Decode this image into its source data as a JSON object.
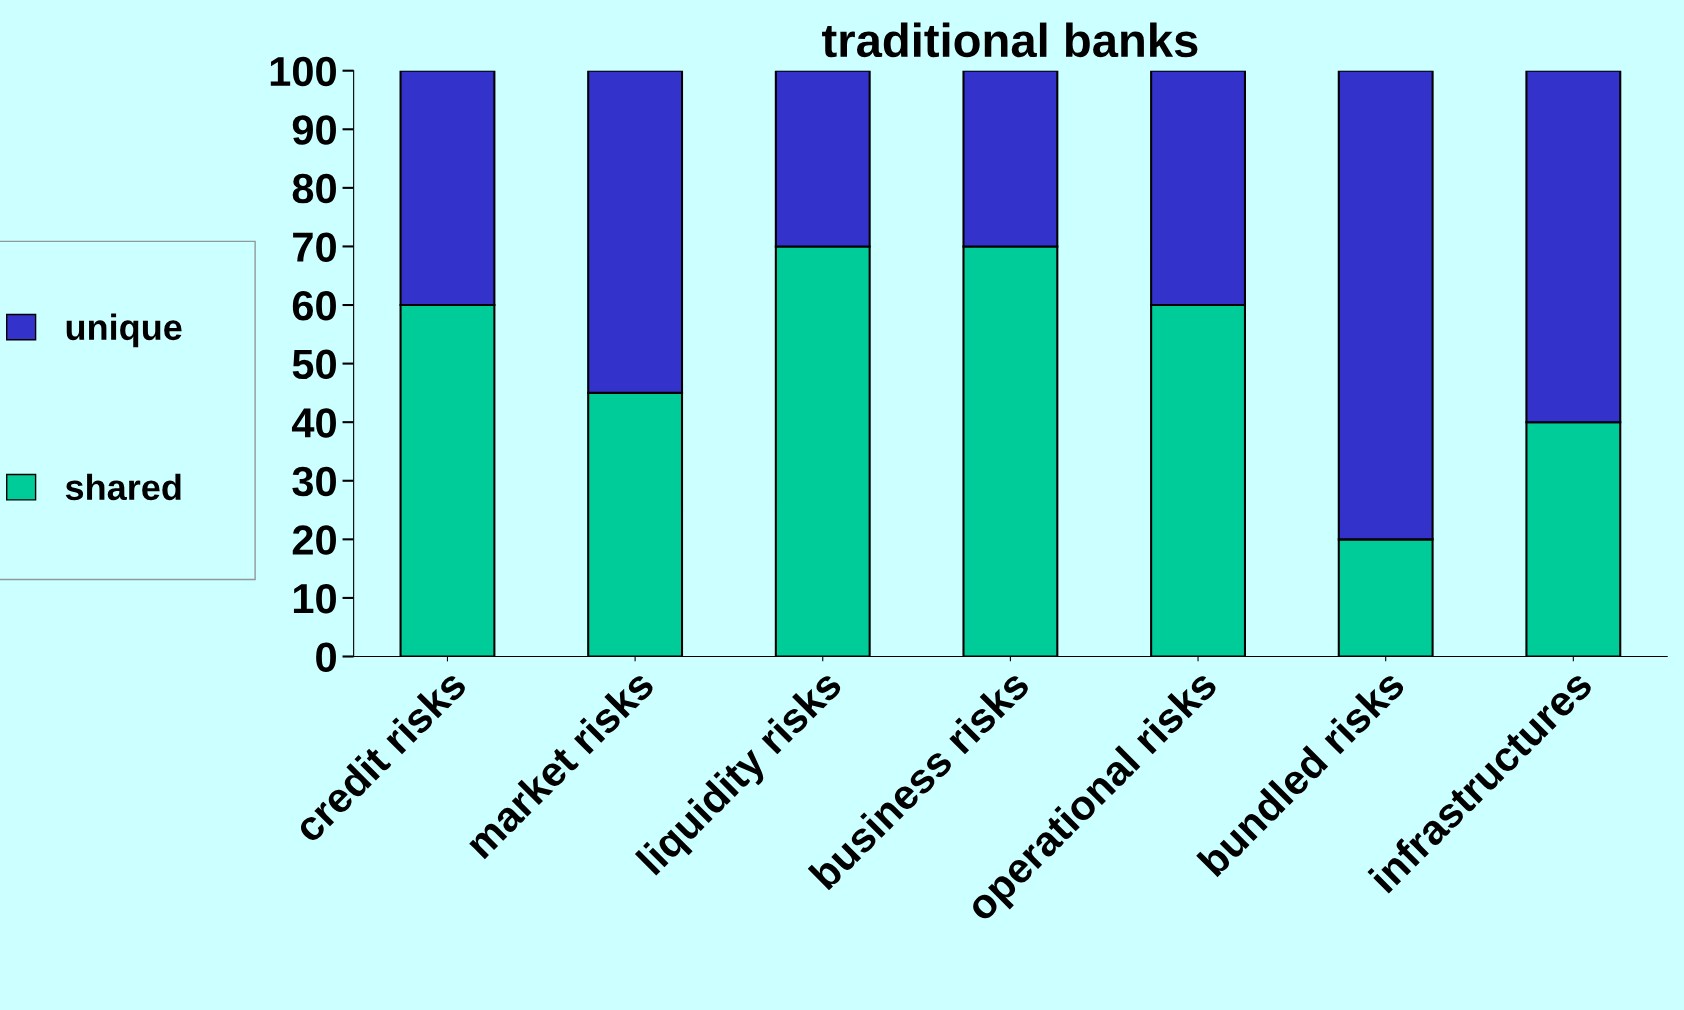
{
  "chart_data": {
    "type": "bar",
    "title": "traditional banks",
    "stacked": true,
    "categories": [
      "credit risks",
      "market risks",
      "liquidity risks",
      "business risks",
      "operational risks",
      "bundled risks",
      "infrastructures"
    ],
    "series": [
      {
        "name": "shared",
        "color": "#00cc99",
        "values": [
          60,
          45,
          70,
          70,
          60,
          20,
          40
        ]
      },
      {
        "name": "unique",
        "color": "#3333cc",
        "values": [
          40,
          55,
          30,
          30,
          40,
          80,
          60
        ]
      }
    ],
    "ylim": [
      0,
      100
    ],
    "yticks": [
      0,
      10,
      20,
      30,
      40,
      50,
      60,
      70,
      80,
      90,
      100
    ],
    "grid": false,
    "legend": "left"
  }
}
